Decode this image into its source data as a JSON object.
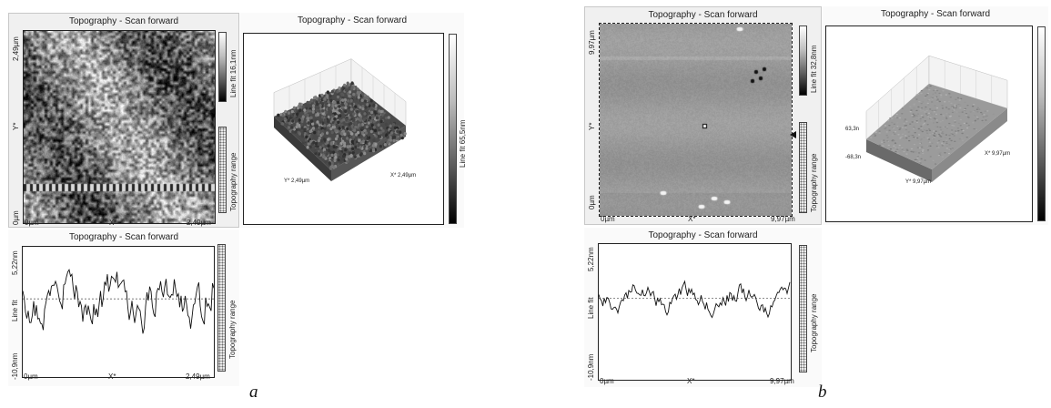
{
  "a": {
    "caption": "a",
    "image_panel": {
      "title": "Topography - Scan forward",
      "y_top": "2,49µm",
      "y_axis": "Y*",
      "y_bottom": "0µm",
      "x_left": "0µm",
      "x_axis": "X*",
      "x_right": "2,49µm",
      "colorbar_label": "Line fit 16,1nm",
      "range_label": "Topography range"
    },
    "view3d_panel": {
      "title": "Topography - Scan forward",
      "y_extent": "Y* 2,49µm",
      "x_extent": "X* 2,49µm",
      "colorbar_label": "Line fit 65,5nm"
    },
    "profile_panel": {
      "title": "Topography - Scan forward",
      "y_top": "5,22nm",
      "y_axis": "Line fit",
      "y_bottom": "-10,9nm",
      "x_left": "0µm",
      "x_axis": "X*",
      "x_right": "2,49µm",
      "range_label": "Topography range"
    }
  },
  "b": {
    "caption": "b",
    "image_panel": {
      "title": "Topography - Scan forward",
      "y_top": "9,97µm",
      "y_axis": "Y*",
      "y_bottom": "0µm",
      "x_left": "0µm",
      "x_axis": "X*",
      "x_right": "9,97µm",
      "colorbar_label": "Line fit 32,8nm",
      "range_label": "Topography range"
    },
    "view3d_panel": {
      "title": "Topography - Scan forward",
      "z_top": "63,3n",
      "z_bottom": "-68,3n",
      "x_extent": "X* 9,97µm",
      "y_extent": "Y* 9,97µm"
    },
    "profile_panel": {
      "title": "Topography - Scan forward",
      "y_top": "5,22nm",
      "y_axis": "Line fit",
      "y_bottom": "-10,9nm",
      "x_left": "0µm",
      "x_axis": "X*",
      "x_right": "9,97µm",
      "range_label": "Topography range"
    }
  }
}
